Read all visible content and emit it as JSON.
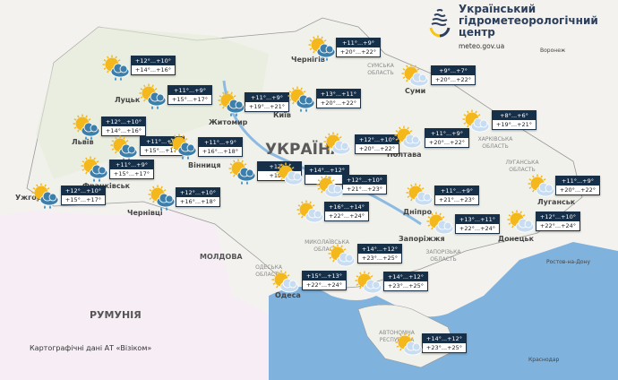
{
  "logo": {
    "line1": "Український",
    "line2": "гідрометеорологічний",
    "line3": "центр",
    "url": "meteo.gov.ua"
  },
  "credit": "Картографічні дані АТ «Візіком»",
  "countries": {
    "ukraine": "УКРАЇНА",
    "romania": "РУМУНІЯ",
    "moldova": "МОЛДОВА"
  },
  "cities": {
    "lutsk": "Луцьк",
    "lviv": "Львів",
    "frankivsk": "Франківськ",
    "uzhhorod": "Ужгород",
    "chernivtsi": "Чернівці",
    "zhytomyr": "Житомир",
    "kyiv": "Київ",
    "chernihiv": "Чернігів",
    "sumy": "Суми",
    "poltava": "Полтава",
    "vinnytsia": "Вінниця",
    "dnipro": "Дніпро",
    "zaporizhzhia": "Запоріжжя",
    "luhansk": "Луганськ",
    "donetsk": "Донецьк",
    "odesa": "Одеса",
    "rostov": "Ростов-на-Дону",
    "krasnodar": "Краснодар",
    "voronezh": "Воронеж"
  },
  "oblasts": {
    "sumska": "СУМСЬКА ОБЛАСТЬ",
    "kharkivska": "ХАРКІВСЬКА ОБЛАСТЬ",
    "luhanska": "ЛУГАНСЬКА ОБЛАСТЬ",
    "zaporizka": "ЗАПОРІЗЬКА ОБЛАСТЬ",
    "mykolaivska": "МИКОЛАЇВСЬКА ОБЛАСТЬ",
    "odeska": "ОДЕСЬКА ОБЛАСТЬ",
    "crimea": "АВТОНОМНА РЕСПУБЛІКА"
  },
  "colors": {
    "header": "#17304a",
    "sea": "#7fb2dc",
    "sun": "#f5b81c",
    "rain_cloud": "#3d7fab",
    "light_cloud": "#c9ddf2"
  },
  "forecasts": [
    {
      "id": "volyn",
      "night": "+12°...+10°",
      "day": "+14°...+16°",
      "icon": "sun-cloud-rain-icon"
    },
    {
      "id": "rivne",
      "night": "+11°...+9°",
      "day": "+15°...+17°",
      "icon": "sun-cloud-rain-icon"
    },
    {
      "id": "zhytomyr",
      "night": "+11°...+9°",
      "day": "+19°...+21°",
      "icon": "sun-cloud-rain-icon"
    },
    {
      "id": "chernihiv",
      "night": "+11°...+9°",
      "day": "+20°...+22°",
      "icon": "sun-cloud-rain-icon"
    },
    {
      "id": "kyiv",
      "night": "+13°...+11°",
      "day": "+20°...+22°",
      "icon": "sun-cloud-rain-icon"
    },
    {
      "id": "sumy",
      "night": "+9°...+7°",
      "day": "+20°...+22°",
      "icon": "partly-cloudy-icon"
    },
    {
      "id": "lviv",
      "night": "+12°...+10°",
      "day": "+14°...+16°",
      "icon": "sun-cloud-rain-icon"
    },
    {
      "id": "ternopil",
      "night": "+11°...+9°",
      "day": "+15°...+17°",
      "icon": "sun-cloud-rain-icon"
    },
    {
      "id": "khmelnytskyi",
      "night": "+11°...+9°",
      "day": "+16°...+18°",
      "icon": "sun-cloud-rain-icon"
    },
    {
      "id": "frankivsk",
      "night": "+11°...+9°",
      "day": "+15°...+17°",
      "icon": "sun-cloud-rain-icon"
    },
    {
      "id": "uzhhorod",
      "night": "+12°...+10°",
      "day": "+15°...+17°",
      "icon": "sun-cloud-rain-icon"
    },
    {
      "id": "chernivtsi",
      "night": "+12°...+10°",
      "day": "+16°...+18°",
      "icon": "sun-cloud-rain-icon"
    },
    {
      "id": "vinnytsia",
      "night": "+12°...",
      "day": "+19°...",
      "icon": "sun-cloud-rain-icon"
    },
    {
      "id": "cherkasy",
      "night": "+14°...+12°",
      "day": "+2",
      "icon": "partly-cloudy-icon"
    },
    {
      "id": "kropyvnytskyi",
      "night": "+12°...+10°",
      "day": "+21°...+23°",
      "icon": "partly-cloudy-icon"
    },
    {
      "id": "kremenchuk",
      "night": "+12°...+10°",
      "day": "+20°...+22°",
      "icon": "partly-cloudy-icon"
    },
    {
      "id": "poltava",
      "night": "+11°...+9°",
      "day": "+20°...+22°",
      "icon": "partly-cloudy-icon"
    },
    {
      "id": "kharkiv",
      "night": "+8°...+6°",
      "day": "+19°...+21°",
      "icon": "partly-cloudy-icon"
    },
    {
      "id": "uman",
      "night": "+16°...+14°",
      "day": "+22°...+24°",
      "icon": "partly-cloudy-icon"
    },
    {
      "id": "dnipro",
      "night": "+11°...+9°",
      "day": "+21°...+23°",
      "icon": "partly-cloudy-icon"
    },
    {
      "id": "luhansk",
      "night": "+11°...+9°",
      "day": "+20°...+22°",
      "icon": "partly-cloudy-icon"
    },
    {
      "id": "zaporizhzhia",
      "night": "+13°...+11°",
      "day": "+22°...+24°",
      "icon": "partly-cloudy-icon"
    },
    {
      "id": "donetsk",
      "night": "+12°...+10°",
      "day": "+22°...+24°",
      "icon": "partly-cloudy-icon"
    },
    {
      "id": "mykolaiv",
      "night": "+14°...+12°",
      "day": "+23°...+25°",
      "icon": "partly-cloudy-icon"
    },
    {
      "id": "odesa",
      "night": "+15°...+13°",
      "day": "+22°...+24°",
      "icon": "partly-cloudy-icon"
    },
    {
      "id": "kherson",
      "night": "+14°...+12°",
      "day": "+23°...+25°",
      "icon": "partly-cloudy-icon"
    },
    {
      "id": "crimea",
      "night": "+14°...+12°",
      "day": "+23°...+25°",
      "icon": "partly-cloudy-icon"
    }
  ]
}
